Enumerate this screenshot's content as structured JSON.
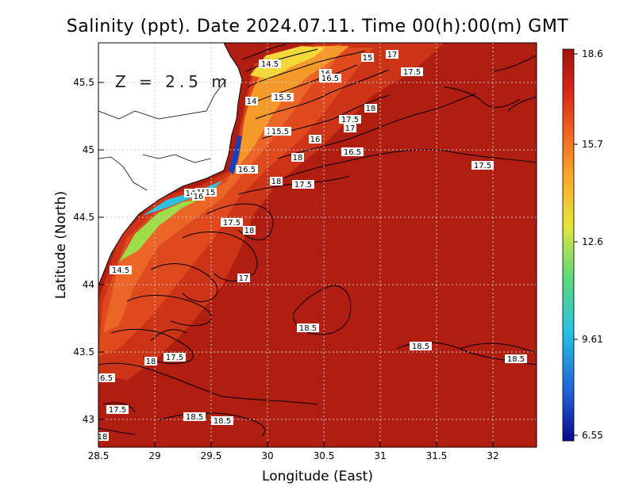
{
  "title": "Salinity (ppt). Date 2024.07.11. Time 00(h):00(m) GMT",
  "depth_label": "Z = 2.5 m",
  "x_axis": {
    "label": "Longitude (East)",
    "ticks": [
      "28.5",
      "29",
      "29.5",
      "30",
      "30.5",
      "31",
      "31.5",
      "32"
    ]
  },
  "y_axis": {
    "label": "Latitude (North)",
    "ticks": [
      "43",
      "43.5",
      "44",
      "44.5",
      "45",
      "45.5"
    ]
  },
  "colorbar": {
    "ticks": [
      "18.6",
      "15.7",
      "12.6",
      "9.61",
      "6.55"
    ],
    "colors": [
      "#0a0a8c",
      "#1f5fd6",
      "#27c3e0",
      "#5fd87a",
      "#e6e63a",
      "#f9a52a",
      "#ef5a1f",
      "#d42616",
      "#a0140e"
    ]
  },
  "contour_labels": [
    "14.5",
    "15",
    "17",
    "17.5",
    "16",
    "16.5",
    "14",
    "15.5",
    "18",
    "16.5",
    "15.5",
    "16",
    "18",
    "16.5",
    "17",
    "17.5",
    "17.5",
    "14",
    "15",
    "16",
    "15",
    "17.5",
    "18",
    "16.5",
    "17",
    "14.5",
    "17.5",
    "18",
    "18.5",
    "18.5",
    "18.5",
    "18",
    "17.5",
    "6.5",
    "17.5",
    "18.5",
    "18.5",
    "18"
  ],
  "colors": {
    "land": "#ffffff",
    "sea_main": "#b01e12",
    "sea_mid": "#d8401c",
    "sea_coast": "#ee6a24",
    "sea_orange": "#f6a02a",
    "sea_yellow": "#f2e43a",
    "grid": "#c8c8c8",
    "contour": "#000000"
  }
}
